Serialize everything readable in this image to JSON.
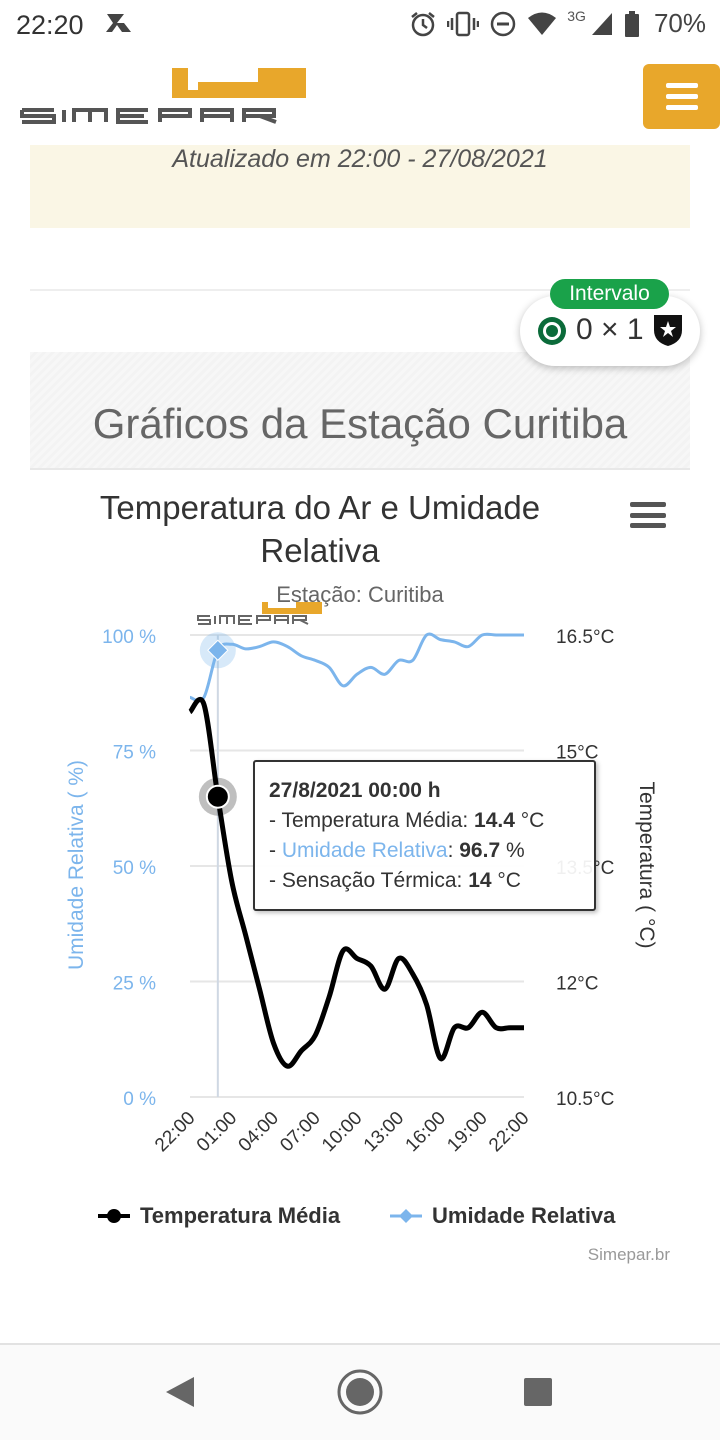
{
  "status_bar": {
    "time": "22:20",
    "network": "3G",
    "battery": "70%"
  },
  "header": {
    "logo_text": "SIMEPAR"
  },
  "update": {
    "text": "Atualizado em 22:00 - 27/08/2021"
  },
  "section": {
    "title": "Gráficos da Estação Curitiba"
  },
  "score_widget": {
    "badge": "Intervalo",
    "score": "0 × 1"
  },
  "chart": {
    "title": "Temperatura do Ar e Umidade Relativa",
    "subtitle": "Estação: Curitiba",
    "credits": "Simepar.br",
    "left_axis_title": "Umidade Relativa ( %)",
    "right_axis_title": "Temperatura ( °C)",
    "left_ticks": [
      "0 %",
      "25 %",
      "50 %",
      "75 %",
      "100 %"
    ],
    "right_ticks": [
      "10.5°C",
      "12°C",
      "13.5°C",
      "15°C",
      "16.5°C"
    ],
    "x_ticks": [
      "22:00",
      "01:00",
      "04:00",
      "07:00",
      "10:00",
      "13:00",
      "16:00",
      "19:00",
      "22:00"
    ],
    "tooltip": {
      "header": "27/8/2021 00:00 h",
      "line1_label": "Temperatura Média",
      "line1_value": "14.4",
      "line1_unit": "°C",
      "line2_label": "Umidade Relativa",
      "line2_value": "96.7",
      "line2_unit": "%",
      "line3_label": "Sensação Térmica",
      "line3_value": "14",
      "line3_unit": "°C"
    },
    "legend": {
      "temp": "Temperatura Média",
      "umid": "Umidade Relativa"
    },
    "colors": {
      "temp": "#000000",
      "umid": "#7cb5ec"
    }
  },
  "chart_data": {
    "type": "line",
    "title": "Temperatura do Ar e Umidade Relativa",
    "subtitle": "Estação: Curitiba",
    "x": [
      "22:00",
      "23:00",
      "00:00",
      "01:00",
      "02:00",
      "03:00",
      "04:00",
      "05:00",
      "06:00",
      "07:00",
      "08:00",
      "09:00",
      "10:00",
      "11:00",
      "12:00",
      "13:00",
      "14:00",
      "15:00",
      "16:00",
      "17:00",
      "18:00",
      "19:00",
      "20:00",
      "21:00",
      "22:00"
    ],
    "x_tick_labels": [
      "22:00",
      "01:00",
      "04:00",
      "07:00",
      "10:00",
      "13:00",
      "16:00",
      "19:00",
      "22:00"
    ],
    "series": [
      {
        "name": "Temperatura Média",
        "axis": "right",
        "unit": "°C",
        "values": [
          15.5,
          15.6,
          14.4,
          13.3,
          12.6,
          11.9,
          11.2,
          10.9,
          11.1,
          11.3,
          11.8,
          12.4,
          12.3,
          12.2,
          11.9,
          12.3,
          12.1,
          11.7,
          11.0,
          11.4,
          11.4,
          11.6,
          11.4,
          11.4,
          11.4
        ]
      },
      {
        "name": "Umidade Relativa",
        "axis": "left",
        "unit": "%",
        "values": [
          86.5,
          86.5,
          96.7,
          98.0,
          97.0,
          97.5,
          98.5,
          97.5,
          95.5,
          94.5,
          93.0,
          89.0,
          91.5,
          93.0,
          91.5,
          94.5,
          94.5,
          100.0,
          99.0,
          98.5,
          97.5,
          100.0,
          100.0,
          100.0,
          100.0
        ]
      }
    ],
    "left_axis": {
      "label": "Umidade Relativa ( %)",
      "range": [
        0,
        100
      ]
    },
    "right_axis": {
      "label": "Temperatura ( °C)",
      "range": [
        10.5,
        16.5
      ]
    },
    "grid": true,
    "legend_position": "bottom"
  }
}
